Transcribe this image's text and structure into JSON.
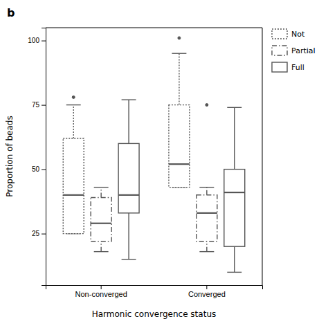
{
  "chart_data": {
    "type": "box",
    "title": "b",
    "xlabel": "Harmonic convergence status",
    "ylabel": "Proportion of beads",
    "categories": [
      "Non-converged",
      "Converged"
    ],
    "ylim": [
      5,
      105
    ],
    "yticks": [
      25,
      50,
      75,
      100
    ],
    "grid": false,
    "legend": "right",
    "color": "#555555",
    "series": [
      {
        "name": "Not",
        "line_style": "dotted",
        "q1": [
          25,
          43
        ],
        "median": [
          40,
          52
        ],
        "q3": [
          62,
          75
        ],
        "whisker_low": [
          25,
          43
        ],
        "whisker_high": [
          75,
          95
        ],
        "outliers": [
          [
            78
          ],
          [
            101
          ]
        ]
      },
      {
        "name": "Partial",
        "line_style": "dashdot",
        "q1": [
          22,
          22
        ],
        "median": [
          29,
          33
        ],
        "q3": [
          39,
          40
        ],
        "whisker_low": [
          18,
          18
        ],
        "whisker_high": [
          43,
          43
        ],
        "outliers": [
          [],
          [
            75
          ]
        ]
      },
      {
        "name": "Full",
        "line_style": "solid",
        "q1": [
          33,
          20
        ],
        "median": [
          40,
          41
        ],
        "q3": [
          60,
          50
        ],
        "whisker_low": [
          15,
          10
        ],
        "whisker_high": [
          77,
          74
        ],
        "outliers": [
          [],
          []
        ]
      }
    ]
  }
}
